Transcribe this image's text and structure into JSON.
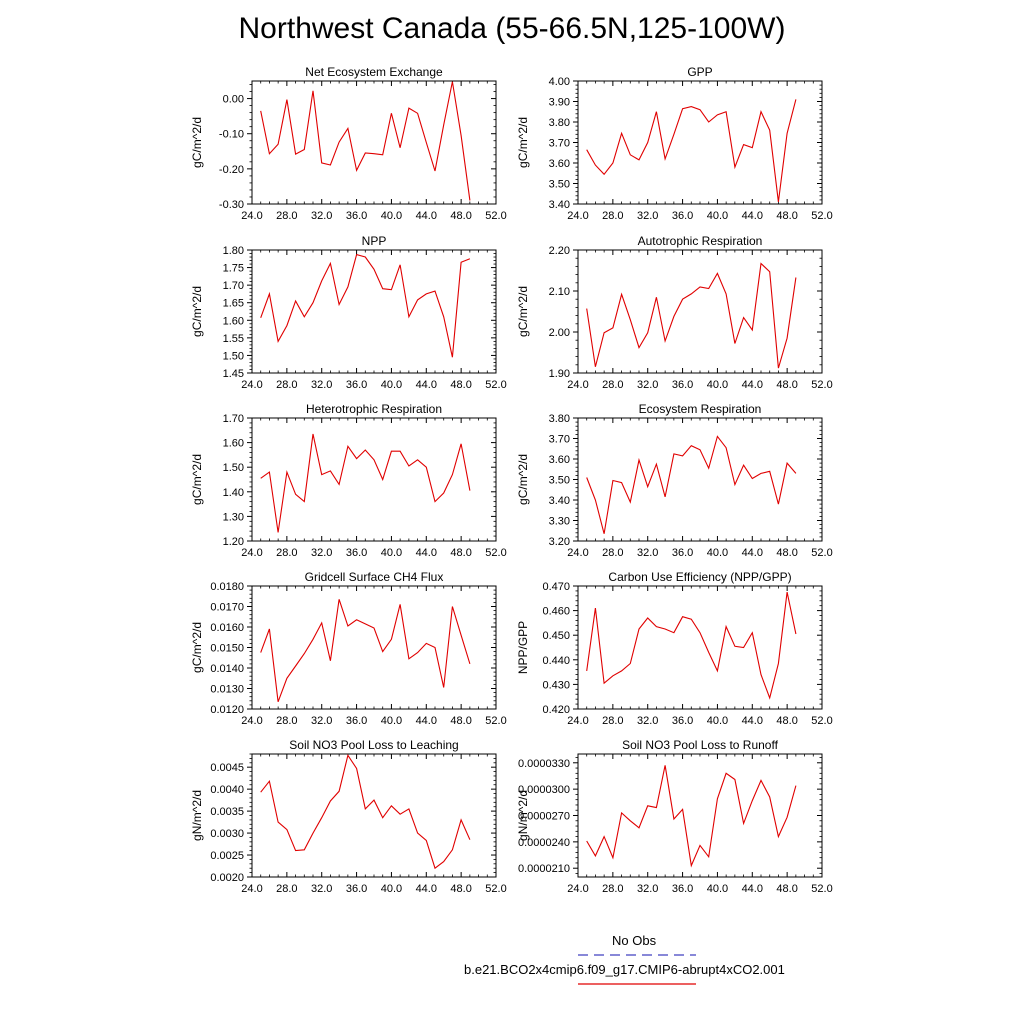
{
  "page": {
    "title": "Northwest Canada (55-66.5N,125-100W)"
  },
  "legend": {
    "entries": [
      {
        "label": "No Obs",
        "color": "#4040c0",
        "dash": "dashed"
      },
      {
        "label": "b.e21.BCO2x4cmip6.f09_g17.CMIP6-abrupt4xCO2.001",
        "color": "#e00000",
        "dash": "solid"
      }
    ]
  },
  "chart_data": [
    {
      "type": "line",
      "title": "Net Ecosystem Exchange",
      "ylabel": "gC/m^2/d",
      "xlim": [
        24,
        52
      ],
      "ylim": [
        -0.3,
        0.05
      ],
      "xticks": [
        24,
        28,
        32,
        36,
        40,
        44,
        48,
        52
      ],
      "xtick_labels": [
        "24.0",
        "28.0",
        "32.0",
        "36.0",
        "40.0",
        "44.0",
        "48.0",
        "52.0"
      ],
      "yticks": [
        -0.3,
        -0.2,
        -0.1,
        0.0
      ],
      "ytick_labels": [
        "-0.30",
        "-0.20",
        "-0.10",
        "0.00"
      ],
      "series": [
        {
          "name": "b.e21.BCO2x4cmip6.f09_g17.CMIP6-abrupt4xCO2.001",
          "color": "#e00000",
          "x": [
            25,
            26,
            27,
            28,
            29,
            30,
            31,
            32,
            33,
            34,
            35,
            36,
            37,
            38,
            39,
            40,
            41,
            42,
            43,
            44,
            45,
            46,
            47,
            48,
            49
          ],
          "y": [
            -0.035,
            -0.157,
            -0.13,
            -0.003,
            -0.158,
            -0.145,
            0.022,
            -0.183,
            -0.189,
            -0.124,
            -0.085,
            -0.204,
            -0.155,
            -0.157,
            -0.16,
            -0.042,
            -0.14,
            -0.027,
            -0.042,
            -0.125,
            -0.206,
            -0.075,
            0.048,
            -0.105,
            -0.29
          ]
        }
      ]
    },
    {
      "type": "line",
      "title": "GPP",
      "ylabel": "gC/m^2/d",
      "xlim": [
        24,
        52
      ],
      "ylim": [
        3.4,
        4.0
      ],
      "xticks": [
        24,
        28,
        32,
        36,
        40,
        44,
        48,
        52
      ],
      "xtick_labels": [
        "24.0",
        "28.0",
        "32.0",
        "36.0",
        "40.0",
        "44.0",
        "48.0",
        "52.0"
      ],
      "yticks": [
        3.4,
        3.5,
        3.6,
        3.7,
        3.8,
        3.9,
        4.0
      ],
      "ytick_labels": [
        "3.40",
        "3.50",
        "3.60",
        "3.70",
        "3.80",
        "3.90",
        "4.00"
      ],
      "series": [
        {
          "name": "b.e21.BCO2x4cmip6.f09_g17.CMIP6-abrupt4xCO2.001",
          "color": "#e00000",
          "x": [
            25,
            26,
            27,
            28,
            29,
            30,
            31,
            32,
            33,
            34,
            35,
            36,
            37,
            38,
            39,
            40,
            41,
            42,
            43,
            44,
            45,
            46,
            47,
            48,
            49
          ],
          "y": [
            3.665,
            3.59,
            3.545,
            3.6,
            3.745,
            3.64,
            3.615,
            3.7,
            3.85,
            3.62,
            3.74,
            3.865,
            3.875,
            3.86,
            3.8,
            3.835,
            3.85,
            3.58,
            3.69,
            3.675,
            3.85,
            3.76,
            3.41,
            3.745,
            3.91
          ]
        }
      ]
    },
    {
      "type": "line",
      "title": "NPP",
      "ylabel": "gC/m^2/d",
      "xlim": [
        24,
        52
      ],
      "ylim": [
        1.45,
        1.8
      ],
      "xticks": [
        24,
        28,
        32,
        36,
        40,
        44,
        48,
        52
      ],
      "xtick_labels": [
        "24.0",
        "28.0",
        "32.0",
        "36.0",
        "40.0",
        "44.0",
        "48.0",
        "52.0"
      ],
      "yticks": [
        1.45,
        1.5,
        1.55,
        1.6,
        1.65,
        1.7,
        1.75,
        1.8
      ],
      "ytick_labels": [
        "1.45",
        "1.50",
        "1.55",
        "1.60",
        "1.65",
        "1.70",
        "1.75",
        "1.80"
      ],
      "series": [
        {
          "name": "b.e21.BCO2x4cmip6.f09_g17.CMIP6-abrupt4xCO2.001",
          "color": "#e00000",
          "x": [
            25,
            26,
            27,
            28,
            29,
            30,
            31,
            32,
            33,
            34,
            35,
            36,
            37,
            38,
            39,
            40,
            41,
            42,
            43,
            44,
            45,
            46,
            47,
            48,
            49
          ],
          "y": [
            1.607,
            1.675,
            1.54,
            1.585,
            1.655,
            1.61,
            1.65,
            1.712,
            1.762,
            1.645,
            1.695,
            1.787,
            1.78,
            1.745,
            1.69,
            1.687,
            1.758,
            1.61,
            1.658,
            1.675,
            1.683,
            1.61,
            1.495,
            1.765,
            1.775
          ]
        }
      ]
    },
    {
      "type": "line",
      "title": "Autotrophic Respiration",
      "ylabel": "gC/m^2/d",
      "xlim": [
        24,
        52
      ],
      "ylim": [
        1.9,
        2.2
      ],
      "xticks": [
        24,
        28,
        32,
        36,
        40,
        44,
        48,
        52
      ],
      "xtick_labels": [
        "24.0",
        "28.0",
        "32.0",
        "36.0",
        "40.0",
        "44.0",
        "48.0",
        "52.0"
      ],
      "yticks": [
        1.9,
        2.0,
        2.1,
        2.2
      ],
      "ytick_labels": [
        "1.90",
        "2.00",
        "2.10",
        "2.20"
      ],
      "series": [
        {
          "name": "b.e21.BCO2x4cmip6.f09_g17.CMIP6-abrupt4xCO2.001",
          "color": "#e00000",
          "x": [
            25,
            26,
            27,
            28,
            29,
            30,
            31,
            32,
            33,
            34,
            35,
            36,
            37,
            38,
            39,
            40,
            41,
            42,
            43,
            44,
            45,
            46,
            47,
            48,
            49
          ],
          "y": [
            2.057,
            1.915,
            1.998,
            2.01,
            2.092,
            2.03,
            1.962,
            1.998,
            2.085,
            1.978,
            2.038,
            2.08,
            2.093,
            2.11,
            2.106,
            2.143,
            2.093,
            1.972,
            2.035,
            2.005,
            2.167,
            2.147,
            1.912,
            1.985,
            2.133
          ]
        }
      ]
    },
    {
      "type": "line",
      "title": "Heterotrophic Respiration",
      "ylabel": "gC/m^2/d",
      "xlim": [
        24,
        52
      ],
      "ylim": [
        1.2,
        1.7
      ],
      "xticks": [
        24,
        28,
        32,
        36,
        40,
        44,
        48,
        52
      ],
      "xtick_labels": [
        "24.0",
        "28.0",
        "32.0",
        "36.0",
        "40.0",
        "44.0",
        "48.0",
        "52.0"
      ],
      "yticks": [
        1.2,
        1.3,
        1.4,
        1.5,
        1.6,
        1.7
      ],
      "ytick_labels": [
        "1.20",
        "1.30",
        "1.40",
        "1.50",
        "1.60",
        "1.70"
      ],
      "series": [
        {
          "name": "b.e21.BCO2x4cmip6.f09_g17.CMIP6-abrupt4xCO2.001",
          "color": "#e00000",
          "x": [
            25,
            26,
            27,
            28,
            29,
            30,
            31,
            32,
            33,
            34,
            35,
            36,
            37,
            38,
            39,
            40,
            41,
            42,
            43,
            44,
            45,
            46,
            47,
            48,
            49
          ],
          "y": [
            1.455,
            1.48,
            1.235,
            1.48,
            1.39,
            1.36,
            1.635,
            1.47,
            1.485,
            1.43,
            1.585,
            1.535,
            1.57,
            1.53,
            1.45,
            1.565,
            1.565,
            1.505,
            1.53,
            1.5,
            1.36,
            1.395,
            1.47,
            1.595,
            1.405
          ]
        }
      ]
    },
    {
      "type": "line",
      "title": "Ecosystem Respiration",
      "ylabel": "gC/m^2/d",
      "xlim": [
        24,
        52
      ],
      "ylim": [
        3.2,
        3.8
      ],
      "xticks": [
        24,
        28,
        32,
        36,
        40,
        44,
        48,
        52
      ],
      "xtick_labels": [
        "24.0",
        "28.0",
        "32.0",
        "36.0",
        "40.0",
        "44.0",
        "48.0",
        "52.0"
      ],
      "yticks": [
        3.2,
        3.3,
        3.4,
        3.5,
        3.6,
        3.7,
        3.8
      ],
      "ytick_labels": [
        "3.20",
        "3.30",
        "3.40",
        "3.50",
        "3.60",
        "3.70",
        "3.80"
      ],
      "series": [
        {
          "name": "b.e21.BCO2x4cmip6.f09_g17.CMIP6-abrupt4xCO2.001",
          "color": "#e00000",
          "x": [
            25,
            26,
            27,
            28,
            29,
            30,
            31,
            32,
            33,
            34,
            35,
            36,
            37,
            38,
            39,
            40,
            41,
            42,
            43,
            44,
            45,
            46,
            47,
            48,
            49
          ],
          "y": [
            3.51,
            3.4,
            3.235,
            3.495,
            3.485,
            3.39,
            3.595,
            3.465,
            3.575,
            3.415,
            3.625,
            3.615,
            3.665,
            3.645,
            3.555,
            3.71,
            3.655,
            3.475,
            3.57,
            3.505,
            3.53,
            3.54,
            3.38,
            3.58,
            3.53
          ]
        }
      ]
    },
    {
      "type": "line",
      "title": "Gridcell Surface CH4 Flux",
      "ylabel": "gC/m^2/d",
      "xlim": [
        24,
        52
      ],
      "ylim": [
        0.012,
        0.018
      ],
      "xticks": [
        24,
        28,
        32,
        36,
        40,
        44,
        48,
        52
      ],
      "xtick_labels": [
        "24.0",
        "28.0",
        "32.0",
        "36.0",
        "40.0",
        "44.0",
        "48.0",
        "52.0"
      ],
      "yticks": [
        0.012,
        0.013,
        0.014,
        0.015,
        0.016,
        0.017,
        0.018
      ],
      "ytick_labels": [
        "0.0120",
        "0.0130",
        "0.0140",
        "0.0150",
        "0.0160",
        "0.0170",
        "0.0180"
      ],
      "series": [
        {
          "name": "b.e21.BCO2x4cmip6.f09_g17.CMIP6-abrupt4xCO2.001",
          "color": "#e00000",
          "x": [
            25,
            26,
            27,
            28,
            29,
            30,
            31,
            32,
            33,
            34,
            35,
            36,
            37,
            38,
            39,
            40,
            41,
            42,
            43,
            44,
            45,
            46,
            47,
            48,
            49
          ],
          "y": [
            0.01475,
            0.0159,
            0.01235,
            0.0135,
            0.0141,
            0.0147,
            0.0154,
            0.0162,
            0.01435,
            0.01735,
            0.01605,
            0.01635,
            0.01615,
            0.01595,
            0.0148,
            0.0154,
            0.0171,
            0.01445,
            0.01475,
            0.0152,
            0.015,
            0.01305,
            0.017,
            0.0156,
            0.0142
          ]
        }
      ]
    },
    {
      "type": "line",
      "title": "Carbon Use Efficiency (NPP/GPP)",
      "ylabel": "NPP/GPP",
      "xlim": [
        24,
        52
      ],
      "ylim": [
        0.42,
        0.47
      ],
      "xticks": [
        24,
        28,
        32,
        36,
        40,
        44,
        48,
        52
      ],
      "xtick_labels": [
        "24.0",
        "28.0",
        "32.0",
        "36.0",
        "40.0",
        "44.0",
        "48.0",
        "52.0"
      ],
      "yticks": [
        0.42,
        0.43,
        0.44,
        0.45,
        0.46,
        0.47
      ],
      "ytick_labels": [
        "0.420",
        "0.430",
        "0.440",
        "0.450",
        "0.460",
        "0.470"
      ],
      "series": [
        {
          "name": "b.e21.BCO2x4cmip6.f09_g17.CMIP6-abrupt4xCO2.001",
          "color": "#e00000",
          "x": [
            25,
            26,
            27,
            28,
            29,
            30,
            31,
            32,
            33,
            34,
            35,
            36,
            37,
            38,
            39,
            40,
            41,
            42,
            43,
            44,
            45,
            46,
            47,
            48,
            49
          ],
          "y": [
            0.4355,
            0.461,
            0.4305,
            0.4335,
            0.4355,
            0.4385,
            0.4525,
            0.457,
            0.4535,
            0.4525,
            0.451,
            0.4575,
            0.4565,
            0.451,
            0.443,
            0.4355,
            0.4535,
            0.4455,
            0.445,
            0.451,
            0.434,
            0.4245,
            0.4385,
            0.4675,
            0.4505
          ]
        }
      ]
    },
    {
      "type": "line",
      "title": "Soil NO3 Pool Loss to Leaching",
      "ylabel": "gN/m^2/d",
      "xlim": [
        24,
        52
      ],
      "ylim": [
        0.002,
        0.0048
      ],
      "xticks": [
        24,
        28,
        32,
        36,
        40,
        44,
        48,
        52
      ],
      "xtick_labels": [
        "24.0",
        "28.0",
        "32.0",
        "36.0",
        "40.0",
        "44.0",
        "48.0",
        "52.0"
      ],
      "yticks": [
        0.002,
        0.0025,
        0.003,
        0.0035,
        0.004,
        0.0045
      ],
      "ytick_labels": [
        "0.0020",
        "0.0025",
        "0.0030",
        "0.0035",
        "0.0040",
        "0.0045"
      ],
      "series": [
        {
          "name": "b.e21.BCO2x4cmip6.f09_g17.CMIP6-abrupt4xCO2.001",
          "color": "#e00000",
          "x": [
            25,
            26,
            27,
            28,
            29,
            30,
            31,
            32,
            33,
            34,
            35,
            36,
            37,
            38,
            39,
            40,
            41,
            42,
            43,
            44,
            45,
            46,
            47,
            48,
            49
          ],
          "y": [
            0.00393,
            0.00418,
            0.00325,
            0.00308,
            0.0026,
            0.00262,
            0.003,
            0.00335,
            0.00373,
            0.00395,
            0.00477,
            0.00447,
            0.00355,
            0.00375,
            0.00335,
            0.00362,
            0.00343,
            0.00355,
            0.003,
            0.00283,
            0.0022,
            0.00235,
            0.00262,
            0.0033,
            0.00285
          ]
        }
      ]
    },
    {
      "type": "line",
      "title": "Soil NO3 Pool Loss to Runoff",
      "ylabel": "gN/m^2/d",
      "xlim": [
        24,
        52
      ],
      "ylim": [
        2e-05,
        3.4e-05
      ],
      "xticks": [
        24,
        28,
        32,
        36,
        40,
        44,
        48,
        52
      ],
      "xtick_labels": [
        "24.0",
        "28.0",
        "32.0",
        "36.0",
        "40.0",
        "44.0",
        "48.0",
        "52.0"
      ],
      "yticks": [
        2.1e-05,
        2.4e-05,
        2.7e-05,
        3e-05,
        3.3e-05
      ],
      "ytick_labels": [
        "0.0000210",
        "0.0000240",
        "0.0000270",
        "0.0000300",
        "0.0000330"
      ],
      "series": [
        {
          "name": "b.e21.BCO2x4cmip6.f09_g17.CMIP6-abrupt4xCO2.001",
          "color": "#e00000",
          "x": [
            25,
            26,
            27,
            28,
            29,
            30,
            31,
            32,
            33,
            34,
            35,
            36,
            37,
            38,
            39,
            40,
            41,
            42,
            43,
            44,
            45,
            46,
            47,
            48,
            49
          ],
          "y": [
            2.41e-05,
            2.24e-05,
            2.46e-05,
            2.22e-05,
            2.73e-05,
            2.64e-05,
            2.56e-05,
            2.81e-05,
            2.79e-05,
            3.27e-05,
            2.66e-05,
            2.77e-05,
            2.13e-05,
            2.36e-05,
            2.23e-05,
            2.89e-05,
            3.18e-05,
            3.11e-05,
            2.61e-05,
            2.87e-05,
            3.1e-05,
            2.91e-05,
            2.46e-05,
            2.68e-05,
            3.04e-05
          ]
        }
      ]
    }
  ]
}
